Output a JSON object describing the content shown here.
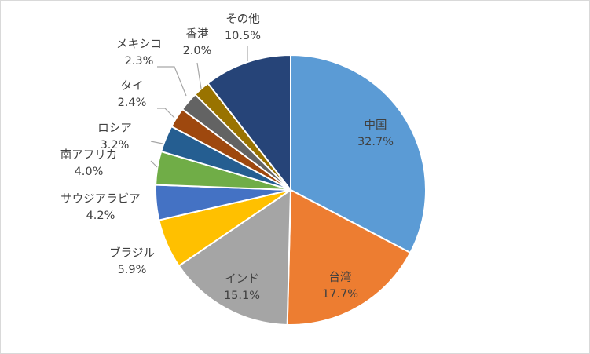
{
  "chart_data": {
    "type": "pie",
    "unit": "%",
    "start_angle_deg": 0,
    "direction": "clockwise",
    "slices": [
      {
        "label": "中国",
        "value": 32.7,
        "value_label": "32.7%",
        "color": "#5b9bd5",
        "label_placement": "inside",
        "label_color": "#404040"
      },
      {
        "label": "台湾",
        "value": 17.7,
        "value_label": "17.7%",
        "color": "#ed7d31",
        "label_placement": "inside",
        "label_color": "#404040"
      },
      {
        "label": "インド",
        "value": 15.1,
        "value_label": "15.1%",
        "color": "#a5a5a5",
        "label_placement": "inside",
        "label_color": "#404040"
      },
      {
        "label": "ブラジル",
        "value": 5.9,
        "value_label": "5.9%",
        "color": "#ffc000",
        "label_placement": "outside"
      },
      {
        "label": "サウジアラビア",
        "value": 4.2,
        "value_label": "4.2%",
        "color": "#4472c4",
        "label_placement": "outside"
      },
      {
        "label": "南アフリカ",
        "value": 4.0,
        "value_label": "4.0%",
        "color": "#70ad47",
        "label_placement": "outside"
      },
      {
        "label": "ロシア",
        "value": 3.2,
        "value_label": "3.2%",
        "color": "#255e91",
        "label_placement": "outside"
      },
      {
        "label": "タイ",
        "value": 2.4,
        "value_label": "2.4%",
        "color": "#9e480e",
        "label_placement": "outside"
      },
      {
        "label": "メキシコ",
        "value": 2.3,
        "value_label": "2.3%",
        "color": "#636363",
        "label_placement": "outside"
      },
      {
        "label": "香港",
        "value": 2.0,
        "value_label": "2.0%",
        "color": "#997300",
        "label_placement": "outside"
      },
      {
        "label": "その他",
        "value": 10.5,
        "value_label": "10.5%",
        "color": "#264478",
        "label_placement": "outside"
      }
    ],
    "legend": "none",
    "title": ""
  }
}
